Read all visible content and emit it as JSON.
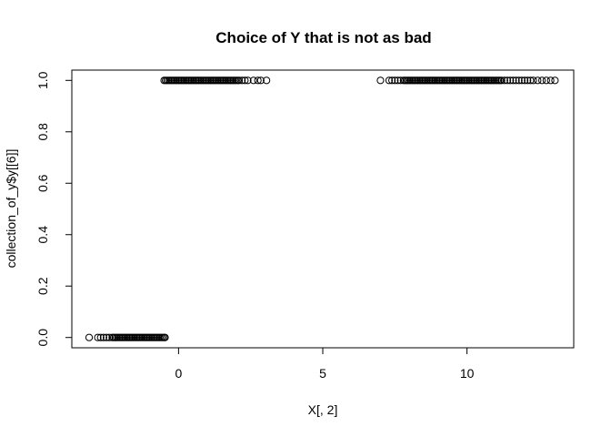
{
  "chart_data": {
    "type": "scatter",
    "title": "Choice of Y that is not as bad",
    "xlabel": "X[, 2]",
    "ylabel": "collection_of_y$y[[6]]",
    "xlim": [
      -3.7,
      13.7
    ],
    "ylim": [
      -0.04,
      1.04
    ],
    "xticks": [
      0,
      5,
      10
    ],
    "xtick_labels": [
      "0",
      "5",
      "10"
    ],
    "yticks": [
      0.0,
      0.2,
      0.4,
      0.6,
      0.8,
      1.0
    ],
    "ytick_labels": [
      "0.0",
      "0.2",
      "0.4",
      "0.6",
      "0.8",
      "1.0"
    ],
    "grid": false,
    "legend": "none",
    "marker": "open-circle",
    "series": [
      {
        "y": 0,
        "x": [
          -3.1,
          -2.8,
          -2.7,
          -2.6,
          -2.5,
          -2.4,
          -2.3,
          -2.25,
          -2.2,
          -2.15,
          -2.1,
          -2.05,
          -2.0,
          -1.95,
          -1.9,
          -1.85,
          -1.8,
          -1.75,
          -1.7,
          -1.65,
          -1.6,
          -1.55,
          -1.5,
          -1.45,
          -1.4,
          -1.35,
          -1.3,
          -1.25,
          -1.2,
          -1.15,
          -1.1,
          -1.05,
          -1.0,
          -0.95,
          -0.9,
          -0.85,
          -0.8,
          -0.75,
          -0.7,
          -0.65,
          -0.6,
          -0.55,
          -0.5,
          -0.47
        ]
      },
      {
        "y": 1,
        "x": [
          -0.5,
          -0.45,
          -0.4,
          -0.35,
          -0.3,
          -0.25,
          -0.2,
          -0.15,
          -0.1,
          -0.05,
          0.0,
          0.05,
          0.1,
          0.15,
          0.2,
          0.25,
          0.3,
          0.35,
          0.4,
          0.45,
          0.5,
          0.55,
          0.6,
          0.65,
          0.7,
          0.75,
          0.8,
          0.85,
          0.9,
          0.95,
          1.0,
          1.05,
          1.1,
          1.15,
          1.2,
          1.25,
          1.3,
          1.35,
          1.4,
          1.45,
          1.5,
          1.55,
          1.6,
          1.65,
          1.7,
          1.75,
          1.8,
          1.85,
          1.9,
          1.95,
          2.0,
          2.05,
          2.1,
          2.2,
          2.3,
          2.4,
          2.6,
          2.75,
          2.85,
          3.05
        ]
      },
      {
        "y": 1,
        "x": [
          7.0,
          7.3,
          7.4,
          7.5,
          7.6,
          7.7,
          7.8,
          7.85,
          7.9,
          7.95,
          8.0,
          8.05,
          8.1,
          8.15,
          8.2,
          8.25,
          8.3,
          8.35,
          8.4,
          8.45,
          8.5,
          8.55,
          8.6,
          8.65,
          8.7,
          8.75,
          8.8,
          8.85,
          8.9,
          8.95,
          9.0,
          9.05,
          9.1,
          9.15,
          9.2,
          9.25,
          9.3,
          9.35,
          9.4,
          9.45,
          9.5,
          9.55,
          9.6,
          9.65,
          9.7,
          9.75,
          9.8,
          9.85,
          9.9,
          9.95,
          10.0,
          10.05,
          10.1,
          10.15,
          10.2,
          10.25,
          10.3,
          10.35,
          10.4,
          10.45,
          10.5,
          10.55,
          10.6,
          10.65,
          10.7,
          10.75,
          10.8,
          10.85,
          10.9,
          10.95,
          11.0,
          11.05,
          11.1,
          11.15,
          11.2,
          11.3,
          11.4,
          11.5,
          11.6,
          11.7,
          11.8,
          11.9,
          12.0,
          12.1,
          12.2,
          12.3,
          12.45,
          12.6,
          12.75,
          12.9,
          13.05
        ]
      }
    ]
  }
}
